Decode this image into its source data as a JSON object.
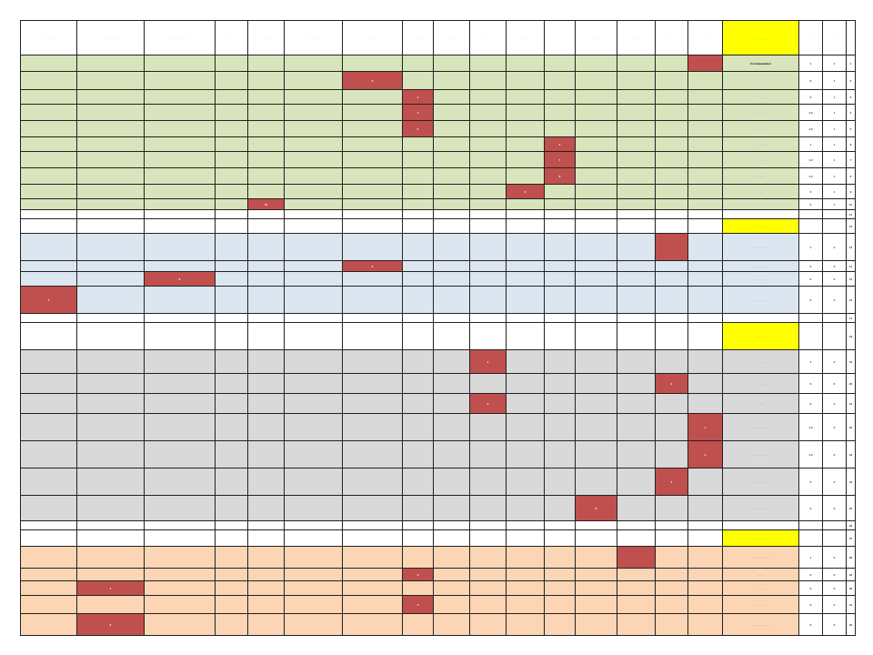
{
  "sheet": {
    "columns": [
      "···· ·····",
      "······· ·· ·······",
      "····· ···· ······",
      "··· ····",
      "·······",
      "····· ······",
      "····· ·······",
      "······",
      "······",
      "······",
      "·····",
      "·····",
      "·······",
      "······",
      "······",
      "·····",
      "·········· ·····",
      "····",
      "····",
      "··"
    ],
    "rows": [
      {
        "cls": "gc",
        "name": "Communication",
        "bold": true,
        "a": "1",
        "b": "1",
        "c": "1",
        "marks": [
          {
            "col": 15,
            "val": ""
          }
        ]
      },
      {
        "cls": "gc",
        "name": "······",
        "a": "0",
        "b": "1",
        "c": "2",
        "marks": [
          {
            "col": 6,
            "val": "3"
          }
        ]
      },
      {
        "cls": "gc",
        "name": "·····",
        "a": "0",
        "b": "1",
        "c": "3",
        "marks": [
          {
            "col": 7,
            "val": "4"
          }
        ]
      },
      {
        "cls": "gc",
        "name": "········",
        "a": "1,0",
        "b": "1",
        "c": "4",
        "marks": [
          {
            "col": 7,
            "val": "4"
          }
        ]
      },
      {
        "cls": "gc",
        "name": "·····",
        "a": "1,0",
        "b": "1",
        "c": "5",
        "marks": [
          {
            "col": 7,
            "val": "5"
          }
        ]
      },
      {
        "cls": "gc",
        "name": "·······",
        "a": "1",
        "b": "1",
        "c": "6",
        "marks": [
          {
            "col": 11,
            "val": "6"
          }
        ]
      },
      {
        "cls": "gc",
        "name": "····",
        "a": "1,0",
        "b": "1",
        "c": "7",
        "marks": [
          {
            "col": 11,
            "val": "7"
          }
        ]
      },
      {
        "cls": "gc",
        "name": "········",
        "a": "1,0",
        "b": "1",
        "c": "8",
        "marks": [
          {
            "col": 11,
            "val": "8"
          }
        ]
      },
      {
        "cls": "gc",
        "name": "·······",
        "a": "0",
        "b": "1",
        "c": "9",
        "marks": [
          {
            "col": 10,
            "val": "9"
          }
        ]
      },
      {
        "cls": "gc",
        "name": "·····",
        "a": "0",
        "b": "1",
        "c": "10",
        "marks": [
          {
            "col": 4,
            "val": "10"
          }
        ]
      },
      {
        "cls": "wc",
        "name": "",
        "a": "",
        "b": "",
        "c": "11",
        "marks": []
      },
      {
        "cls": "wc",
        "name": "········· ····",
        "section": true,
        "a": "",
        "b": "",
        "c": "12",
        "marks": []
      },
      {
        "cls": "bc",
        "name": "······· ···· ·······",
        "a": "1",
        "b": "0",
        "c": "13",
        "marks": [
          {
            "col": 14,
            "val": ""
          }
        ]
      },
      {
        "cls": "bc",
        "name": "······· ······",
        "a": "0",
        "b": "0",
        "c": "14",
        "marks": [
          {
            "col": 6,
            "val": "3"
          }
        ]
      },
      {
        "cls": "bc",
        "name": "······· ······",
        "a": "0",
        "b": "0",
        "c": "15",
        "marks": [
          {
            "col": 2,
            "val": "8"
          }
        ]
      },
      {
        "cls": "bc",
        "name": "······· ···· ······",
        "a": "0",
        "b": "0",
        "c": "16",
        "marks": [
          {
            "col": 0,
            "val": "4"
          }
        ]
      },
      {
        "cls": "wc",
        "name": "",
        "a": "",
        "b": "",
        "c": "17",
        "marks": []
      },
      {
        "cls": "wc",
        "name": "····· ····",
        "section": true,
        "a": "",
        "b": "",
        "c": "18",
        "marks": []
      },
      {
        "cls": "xc",
        "name": "········",
        "a": "1",
        "b": "0",
        "c": "19",
        "marks": [
          {
            "col": 9,
            "val": "1"
          }
        ]
      },
      {
        "cls": "xc",
        "name": "········",
        "a": "0",
        "b": "0",
        "c": "20",
        "marks": [
          {
            "col": 14,
            "val": "2"
          }
        ]
      },
      {
        "cls": "xc",
        "name": "········",
        "a": "0",
        "b": "0",
        "c": "21",
        "marks": [
          {
            "col": 9,
            "val": "2"
          }
        ]
      },
      {
        "cls": "xc",
        "name": "········ ······",
        "a": "1,0",
        "b": "0",
        "c": "22",
        "marks": [
          {
            "col": 15,
            "val": "4"
          }
        ]
      },
      {
        "cls": "xc",
        "name": "········· ···········",
        "a": "1,0",
        "b": "0",
        "c": "23",
        "marks": [
          {
            "col": 15,
            "val": "4"
          }
        ]
      },
      {
        "cls": "xc",
        "name": "·········· ··········",
        "a": "0",
        "b": "0",
        "c": "24",
        "marks": [
          {
            "col": 14,
            "val": "5"
          }
        ]
      },
      {
        "cls": "xc",
        "name": "·········· ········",
        "a": "0",
        "b": "0",
        "c": "25",
        "marks": [
          {
            "col": 12,
            "val": "6"
          }
        ]
      },
      {
        "cls": "wc",
        "name": "",
        "a": "",
        "b": "",
        "c": "26",
        "marks": []
      },
      {
        "cls": "wc",
        "name": "········ ·······",
        "section": true,
        "a": "",
        "b": "",
        "c": "27",
        "marks": []
      },
      {
        "cls": "oc",
        "name": "········· ·········",
        "a": "1",
        "b": "0",
        "c": "28",
        "marks": [
          {
            "col": 13,
            "val": ""
          }
        ]
      },
      {
        "cls": "oc",
        "name": "··········",
        "a": "0",
        "b": "0",
        "c": "29",
        "marks": [
          {
            "col": 7,
            "val": "3"
          }
        ]
      },
      {
        "cls": "oc",
        "name": "·········",
        "a": "0",
        "b": "0",
        "c": "30",
        "marks": [
          {
            "col": 1,
            "val": "4"
          }
        ]
      },
      {
        "cls": "oc",
        "name": "··········",
        "a": "0",
        "b": "0",
        "c": "31",
        "marks": [
          {
            "col": 7,
            "val": "4"
          }
        ]
      },
      {
        "cls": "oc",
        "name": "········· ··········",
        "a": "0",
        "b": "0",
        "c": "32",
        "marks": [
          {
            "col": 1,
            "val": "5"
          }
        ]
      }
    ],
    "colors": {
      "green": "#d8e4bc",
      "blue": "#dce6f1",
      "gray": "#d9d9d9",
      "orange": "#fcd5b4",
      "mark": "#c0504d",
      "title": "#ffff00"
    }
  }
}
